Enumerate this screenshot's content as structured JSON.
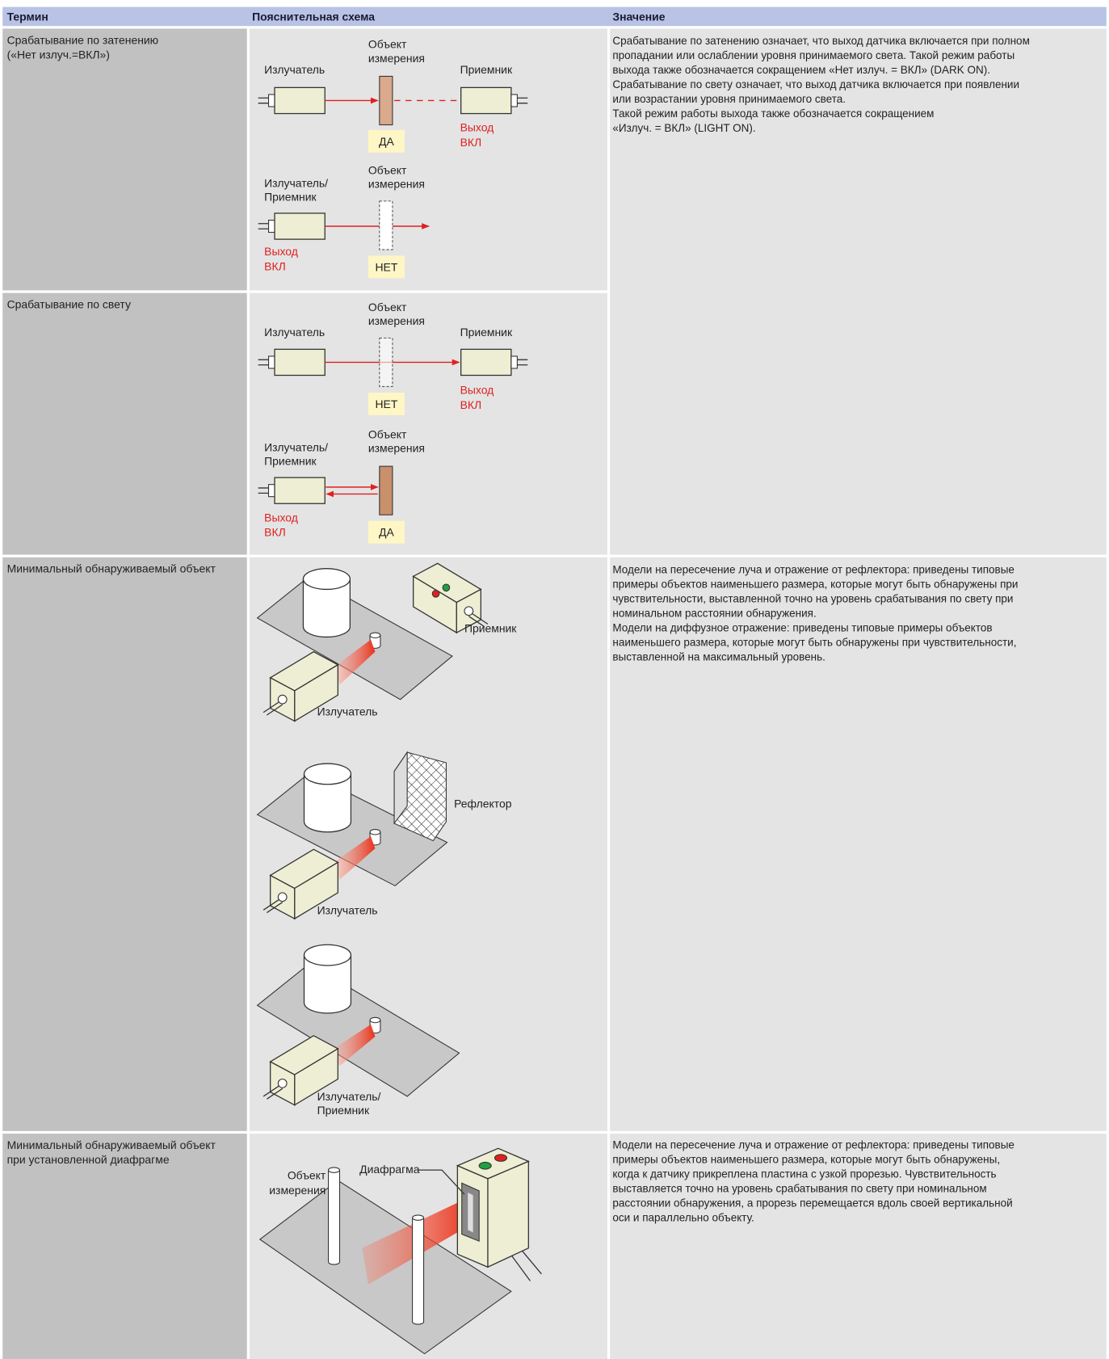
{
  "header": {
    "term": "Термин",
    "diagram": "Пояснительная схема",
    "meaning": "Значение"
  },
  "rows": [
    {
      "term": [
        "Срабатывание по затенению",
        "(«Нет излуч.=ВКЛ»)"
      ],
      "diagram": {
        "top": {
          "emitter": "Излучатель",
          "object": [
            "Объект",
            "измерения"
          ],
          "receiver": "Приемник",
          "output": [
            "Выход",
            "ВКЛ"
          ],
          "state": "ДА"
        },
        "bottom": {
          "emitter": [
            "Излучатель/",
            "Приемник"
          ],
          "object": [
            "Объект",
            "измерения"
          ],
          "output": [
            "Выход",
            "ВКЛ"
          ],
          "state": "НЕТ"
        }
      },
      "meaning": [
        "Срабатывание по затенению означает, что выход датчика включается при полном",
        "пропадании или ослаблении уровня принимаемого света. Такой режим работы",
        "выхода также обозначается сокращением «Нет излуч. = ВКЛ» (DARK ON).",
        "Срабатывание по свету означает, что выход датчика включается при появлении",
        "или возрастании уровня принимаемого света.",
        "Такой режим работы выхода также обозначается сокращением",
        "«Излуч. = ВКЛ» (LIGHT ON)."
      ]
    },
    {
      "term": [
        "Срабатывание по свету"
      ],
      "diagram": {
        "top": {
          "emitter": "Излучатель",
          "object": [
            "Объект",
            "измерения"
          ],
          "receiver": "Приемник",
          "output": [
            "Выход",
            "ВКЛ"
          ],
          "state": "НЕТ"
        },
        "bottom": {
          "emitter": [
            "Излучатель/",
            "Приемник"
          ],
          "object": [
            "Объект",
            "измерения"
          ],
          "output": [
            "Выход",
            "ВКЛ"
          ],
          "state": "ДА"
        }
      }
    },
    {
      "term": [
        "Минимальный обнаруживаемый объект"
      ],
      "diagram": {
        "through_beam": {
          "receiver": "Приемник",
          "emitter": "Излучатель"
        },
        "retroreflective": {
          "reflector": "Рефлектор",
          "emitter": "Излучатель"
        },
        "diffuse": {
          "emitter": [
            "Излучатель/",
            "Приемник"
          ]
        }
      },
      "meaning": [
        "Модели на пересечение луча и отражение от рефлектора: приведены типовые",
        "примеры объектов наименьшего размера, которые могут быть обнаружены при",
        "чувствительности, выставленной точно на уровень срабатывания по свету при",
        "номинальном расстоянии обнаружения.",
        "Модели на диффузное отражение: приведены типовые примеры объектов",
        "наименьшего размера, которые могут быть обнаружены при чувствительности,",
        "выставленной на максимальный уровень."
      ]
    },
    {
      "term": [
        "Минимальный обнаруживаемый объект",
        "при установленной диафрагме"
      ],
      "diagram": {
        "object": [
          "Объект",
          "измерения"
        ],
        "aperture": "Диафрагма"
      },
      "meaning": [
        "Модели на пересечение луча и отражение от рефлектора: приведены типовые",
        "примеры объектов наименьшего размера, которые могут быть обнаружены,",
        "когда к датчику прикреплена пластина с узкой прорезью. Чувствительность",
        "выставляется точно на уровень срабатывания по свету при номинальном",
        "расстоянии обнаружения, а прорезь перемещается вдоль своей вертикальной",
        "оси и параллельно объекту."
      ]
    }
  ]
}
